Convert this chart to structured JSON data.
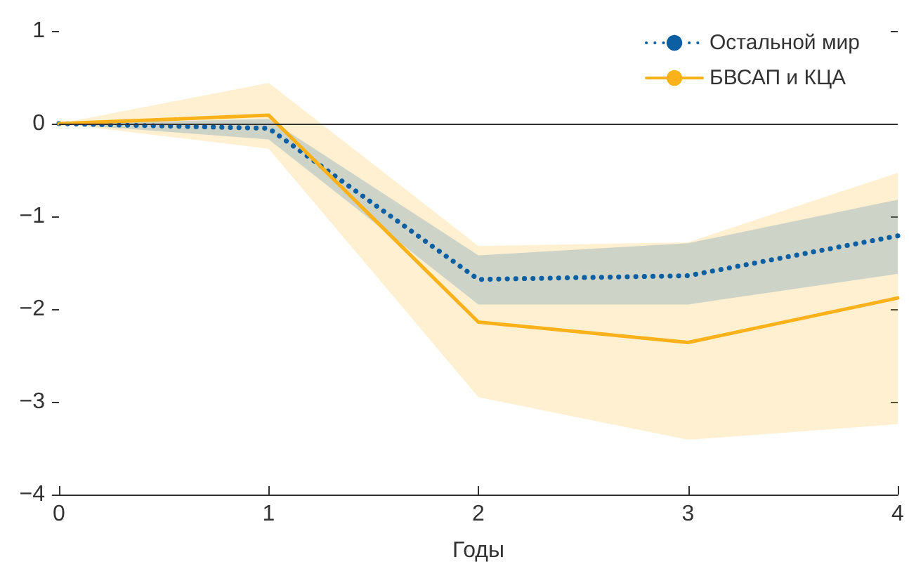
{
  "chart_data": {
    "type": "line",
    "xlabel": "Годы",
    "x": [
      0,
      1,
      2,
      3,
      4
    ],
    "series": [
      {
        "name": "Остальной мир",
        "color": "#0d5fa3",
        "line_style": "dotted",
        "values": [
          0,
          -0.05,
          -1.68,
          -1.64,
          -1.21
        ],
        "lower": [
          0,
          -0.17,
          -1.95,
          -1.95,
          -1.62
        ],
        "upper": [
          0,
          0.05,
          -1.42,
          -1.29,
          -0.82
        ]
      },
      {
        "name": "БВСАП и КЦА",
        "color": "#fbb21a",
        "line_style": "solid",
        "values": [
          0,
          0.09,
          -2.14,
          -2.36,
          -1.88
        ],
        "lower": [
          0,
          -0.27,
          -2.95,
          -3.41,
          -3.24
        ],
        "upper": [
          0,
          0.44,
          -1.32,
          -1.28,
          -0.53
        ]
      }
    ],
    "xlim": [
      0,
      4
    ],
    "xticks": [
      0,
      1,
      2,
      3,
      4
    ],
    "ylim": [
      -4,
      1
    ],
    "yticks": [
      {
        "value": -4,
        "label": "−4"
      },
      {
        "value": -3,
        "label": "−3"
      },
      {
        "value": -2,
        "label": "−2"
      },
      {
        "value": -1,
        "label": "−1"
      },
      0,
      1
    ],
    "ref_lines": [
      {
        "axis": "y",
        "value": 0,
        "color": "#333333"
      }
    ],
    "legend": "top right",
    "grid": false,
    "marker": "none"
  }
}
